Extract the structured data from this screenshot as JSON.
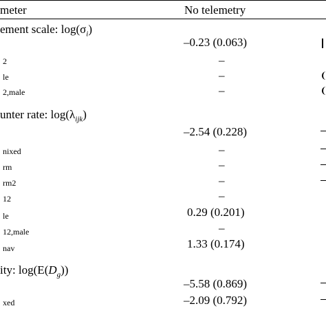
{
  "header": {
    "param": "meter",
    "col": "No telemetry"
  },
  "sections": [
    {
      "title": "ement scale: log(σ",
      "sub": "i",
      "close": ")",
      "rows": [
        {
          "label": "",
          "value": "–0.23 (0.063)"
        },
        {
          "label": "2",
          "value": "–"
        },
        {
          "label": "le",
          "value": "–"
        },
        {
          "label": "2,male",
          "value": "–"
        }
      ]
    },
    {
      "title": "unter rate: log(λ",
      "sub": "ijk",
      "close": ")",
      "rows": [
        {
          "label": "",
          "value": "–2.54 (0.228)"
        },
        {
          "label": "nixed",
          "value": "–"
        },
        {
          "label": "rm",
          "value": "–"
        },
        {
          "label": "rm2",
          "value": "–"
        },
        {
          "label": "12",
          "value": "–"
        },
        {
          "label": "le",
          "value": "0.29 (0.201)"
        },
        {
          "label": "12,male",
          "value": "–"
        },
        {
          "label": "nav",
          "value": "1.33 (0.174)"
        }
      ]
    },
    {
      "title": "ity: log(E(",
      "sub": "D",
      "subsub": "g",
      "close": "))",
      "rows": [
        {
          "label": "",
          "value": "–5.58 (0.869)"
        },
        {
          "label": "xed",
          "value": "–2.09 (0.792)"
        }
      ]
    }
  ]
}
